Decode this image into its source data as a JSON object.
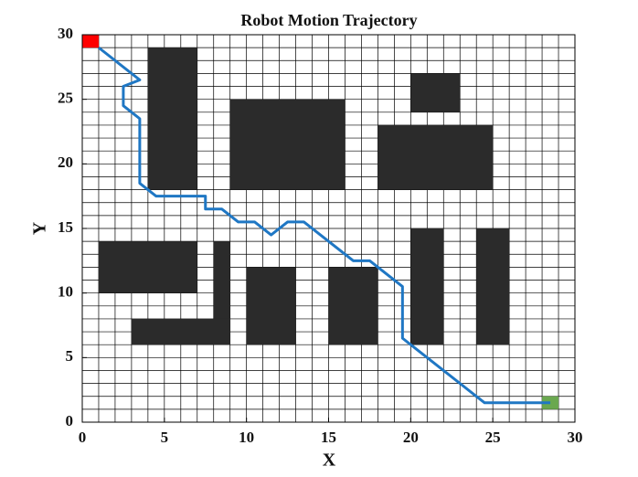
{
  "chart_data": {
    "type": "line",
    "title": "Robot Motion Trajectory",
    "xlabel": "X",
    "ylabel": "Y",
    "x": [
      1,
      3.5,
      2.5,
      2.5,
      3.5,
      3.5,
      4.5,
      7.5,
      7.5,
      8.5,
      9.5,
      10.5,
      11.5,
      12.5,
      13.5,
      16.5,
      17.5,
      19.5,
      19.5,
      24.5,
      28.5
    ],
    "series": [
      {
        "color": "#1f77c4",
        "values": [
          29,
          26.5,
          26,
          24.5,
          23.5,
          18.5,
          17.5,
          17.5,
          16.5,
          16.5,
          15.5,
          15.5,
          14.5,
          15.5,
          15.5,
          12.5,
          12.5,
          10.5,
          6.5,
          1.5,
          1.5
        ]
      }
    ],
    "obstacles": [
      {
        "x": [
          4,
          7
        ],
        "y": [
          18,
          29
        ]
      },
      {
        "x": [
          9,
          16
        ],
        "y": [
          18,
          25
        ]
      },
      {
        "x": [
          20,
          23
        ],
        "y": [
          24,
          27
        ]
      },
      {
        "x": [
          18,
          25
        ],
        "y": [
          18,
          23
        ]
      },
      {
        "x": [
          1,
          7
        ],
        "y": [
          10,
          14
        ]
      },
      {
        "x": [
          8,
          9
        ],
        "y": [
          6,
          14
        ]
      },
      {
        "x": [
          3,
          9
        ],
        "y": [
          6,
          8
        ]
      },
      {
        "x": [
          10,
          13
        ],
        "y": [
          6,
          12
        ]
      },
      {
        "x": [
          15,
          18
        ],
        "y": [
          6,
          12
        ]
      },
      {
        "x": [
          20,
          22
        ],
        "y": [
          6,
          15
        ]
      },
      {
        "x": [
          24,
          26
        ],
        "y": [
          6,
          15
        ]
      }
    ],
    "obstacle_color": "#2b2b2b",
    "start": {
      "x": [
        0,
        1
      ],
      "y": [
        29,
        30
      ],
      "color": "#ff0000"
    },
    "goal": {
      "x": [
        28,
        29
      ],
      "y": [
        1,
        2
      ],
      "color": "#6aa84f"
    },
    "grid_step": 1,
    "xlim": [
      0,
      30
    ],
    "ylim": [
      0,
      30
    ],
    "xticks": [
      0,
      5,
      10,
      15,
      20,
      25,
      30
    ],
    "yticks": [
      0,
      5,
      10,
      15,
      20,
      25,
      30
    ]
  }
}
